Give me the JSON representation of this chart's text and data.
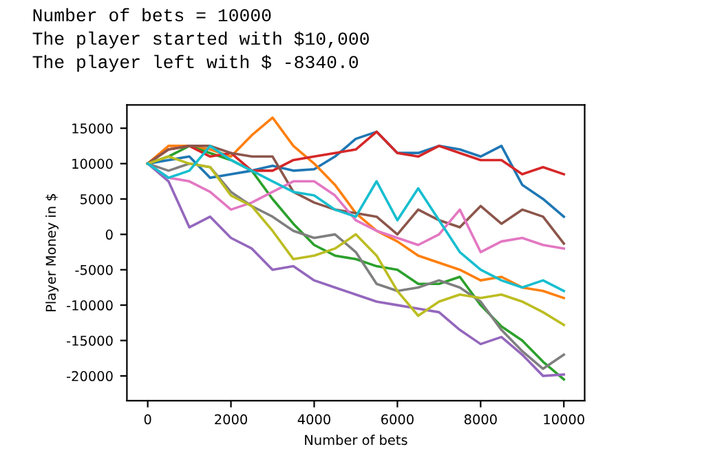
{
  "chart_data": {
    "type": "line",
    "xlabel": "Number of bets",
    "ylabel": "Player Money in $",
    "annotations": [
      "Number of bets = 10000",
      "The player started with $10,000",
      "The player left with $ -8340.0"
    ],
    "x": [
      0,
      500,
      1000,
      1500,
      2000,
      2500,
      3000,
      3500,
      4000,
      4500,
      5000,
      5500,
      6000,
      6500,
      7000,
      7500,
      8000,
      8500,
      9000,
      9500,
      10000
    ],
    "series": [
      {
        "color": "#1f77b4",
        "values": [
          10000,
          10500,
          11000,
          8000,
          8500,
          9000,
          9700,
          9000,
          9200,
          11000,
          13500,
          14500,
          11500,
          11500,
          12500,
          12000,
          11000,
          12500,
          7000,
          5000,
          2500
        ]
      },
      {
        "color": "#ff7f0e",
        "values": [
          10000,
          12500,
          12500,
          12000,
          11000,
          14000,
          16500,
          12500,
          10000,
          7000,
          3000,
          500,
          -1000,
          -3000,
          -4000,
          -5000,
          -6500,
          -6000,
          -7500,
          -8000,
          -9000
        ]
      },
      {
        "color": "#2ca02c",
        "values": [
          10000,
          11000,
          12500,
          11500,
          10500,
          9000,
          5000,
          1500,
          -1500,
          -3000,
          -3500,
          -4500,
          -5000,
          -7000,
          -7000,
          -6000,
          -10000,
          -13000,
          -15000,
          -18000,
          -20500
        ]
      },
      {
        "color": "#d62728",
        "values": [
          10000,
          12000,
          12500,
          11000,
          11500,
          9000,
          9000,
          10500,
          11000,
          11500,
          12000,
          14500,
          11500,
          11000,
          12500,
          11500,
          10500,
          10500,
          8500,
          9500,
          8500
        ]
      },
      {
        "color": "#9467bd",
        "values": [
          10000,
          7500,
          1000,
          2500,
          -500,
          -2000,
          -5000,
          -4500,
          -6500,
          -7500,
          -8500,
          -9500,
          -10000,
          -10500,
          -11000,
          -13500,
          -15500,
          -14500,
          -17000,
          -20000,
          -19800
        ]
      },
      {
        "color": "#8c564b",
        "values": [
          10000,
          12000,
          12500,
          12500,
          11500,
          11000,
          11000,
          6000,
          4500,
          3500,
          3000,
          2500,
          0,
          3500,
          2000,
          1000,
          4000,
          1500,
          3500,
          2500,
          -1300
        ]
      },
      {
        "color": "#e377c2",
        "values": [
          10000,
          8000,
          7500,
          6000,
          3500,
          4500,
          6000,
          7500,
          7500,
          5500,
          2000,
          500,
          -500,
          -1500,
          0,
          3500,
          -2500,
          -1000,
          -500,
          -1500,
          -2000
        ]
      },
      {
        "color": "#7f7f7f",
        "values": [
          10000,
          9000,
          10000,
          9500,
          6000,
          4000,
          2500,
          500,
          -500,
          0,
          -2500,
          -7000,
          -8000,
          -7500,
          -6500,
          -7500,
          -9500,
          -13500,
          -16500,
          -19000,
          -17000
        ]
      },
      {
        "color": "#bcbd22",
        "values": [
          10000,
          11000,
          10000,
          9500,
          5500,
          4000,
          500,
          -3500,
          -3000,
          -2000,
          0,
          -3000,
          -8000,
          -11500,
          -9500,
          -8500,
          -9000,
          -8500,
          -9500,
          -11000,
          -12800
        ]
      },
      {
        "color": "#17becf",
        "values": [
          10000,
          8000,
          9000,
          12500,
          10500,
          9000,
          7500,
          6000,
          5500,
          3500,
          2500,
          7500,
          2000,
          6500,
          2000,
          -2500,
          -5000,
          -6500,
          -7500,
          -6500,
          -8000
        ]
      }
    ],
    "xlim": [
      -500,
      10500
    ],
    "ylim": [
      -23500,
      18300
    ],
    "xticks": [
      0,
      2000,
      4000,
      6000,
      8000,
      10000
    ],
    "yticks": [
      -20000,
      -15000,
      -10000,
      -5000,
      0,
      5000,
      10000,
      15000
    ],
    "grid": false
  }
}
